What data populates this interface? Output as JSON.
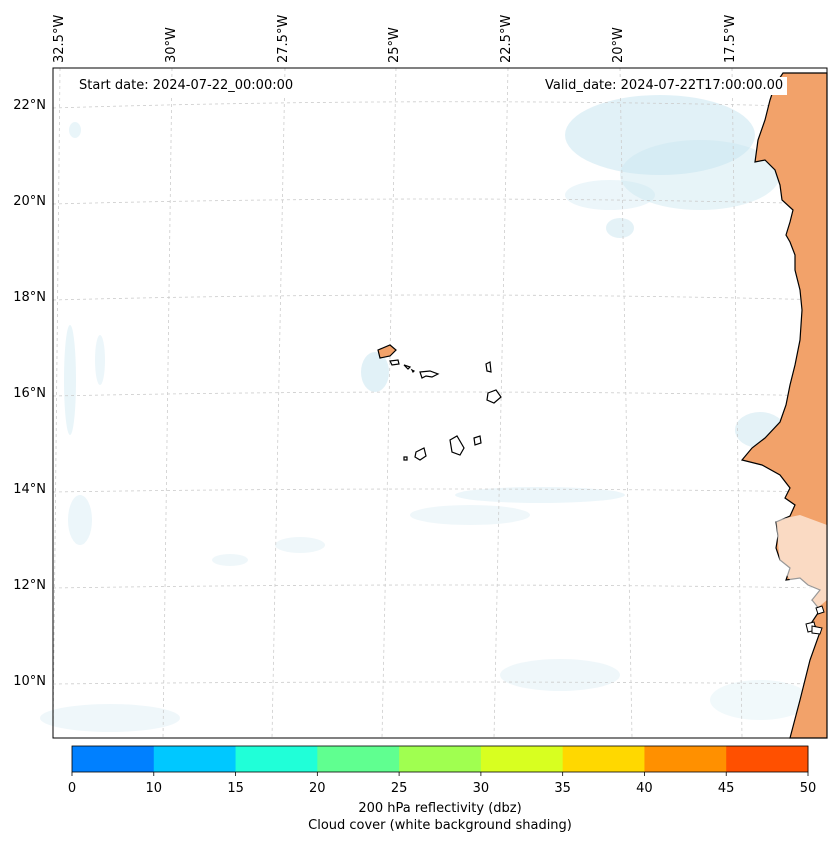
{
  "header": {
    "start_date": "Start date: 2024-07-22_00:00:00",
    "valid_date": "Valid_date: 2024-07-22T17:00:00.00"
  },
  "axes": {
    "lon_labels": [
      "32.5°W",
      "30°W",
      "27.5°W",
      "25°W",
      "22.5°W",
      "20°W",
      "17.5°W"
    ],
    "lat_labels": [
      "22°N",
      "20°N",
      "18°N",
      "16°N",
      "14°N",
      "12°N",
      "10°N"
    ]
  },
  "colorbar": {
    "ticks": [
      "0",
      "10",
      "15",
      "20",
      "25",
      "30",
      "35",
      "40",
      "45",
      "50"
    ],
    "colors": [
      "#0080ff",
      "#00c8ff",
      "#20ffd8",
      "#60ff90",
      "#a0ff50",
      "#d8ff20",
      "#ffd800",
      "#ff9000",
      "#ff5000"
    ],
    "label_line1": "200 hPa reflectivity (dbz)",
    "label_line2": "Cloud cover (white background shading)"
  },
  "map_colors": {
    "land": "#f2a26a",
    "cloud": "#c9e6f0",
    "coast": "#000000",
    "grid": "#cccccc"
  }
}
